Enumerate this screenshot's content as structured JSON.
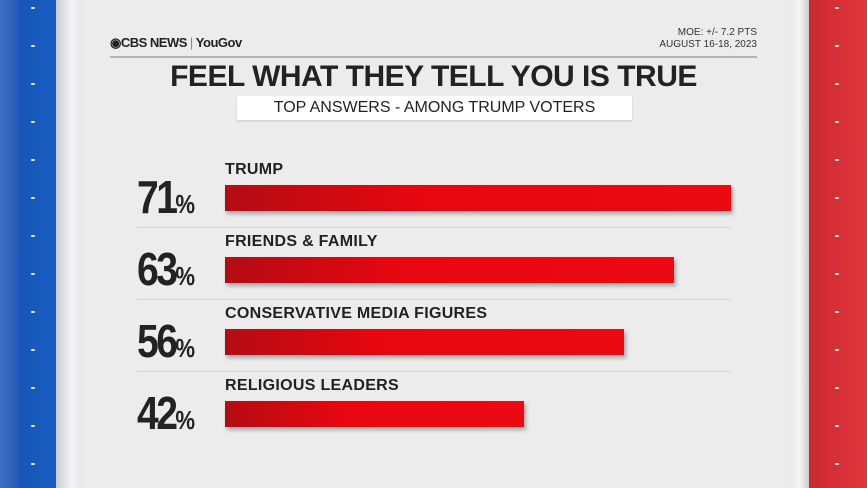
{
  "header": {
    "logo_text": "CBS NEWS",
    "logo_partner": "YouGov",
    "moe": "MOE: +/- 7.2 PTS",
    "date": "AUGUST 16-18, 2023"
  },
  "chart_data": {
    "type": "bar",
    "orientation": "horizontal",
    "title": "FEEL WHAT THEY TELL YOU IS TRUE",
    "subtitle": "TOP ANSWERS - AMONG TRUMP VOTERS",
    "categories": [
      "TRUMP",
      "FRIENDS & FAMILY",
      "CONSERVATIVE MEDIA FIGURES",
      "RELIGIOUS LEADERS"
    ],
    "values": [
      71,
      63,
      56,
      42
    ],
    "value_labels": [
      "71",
      "63",
      "56",
      "42"
    ],
    "unit": "%",
    "bar_color": "#e8060f",
    "grid": false
  }
}
